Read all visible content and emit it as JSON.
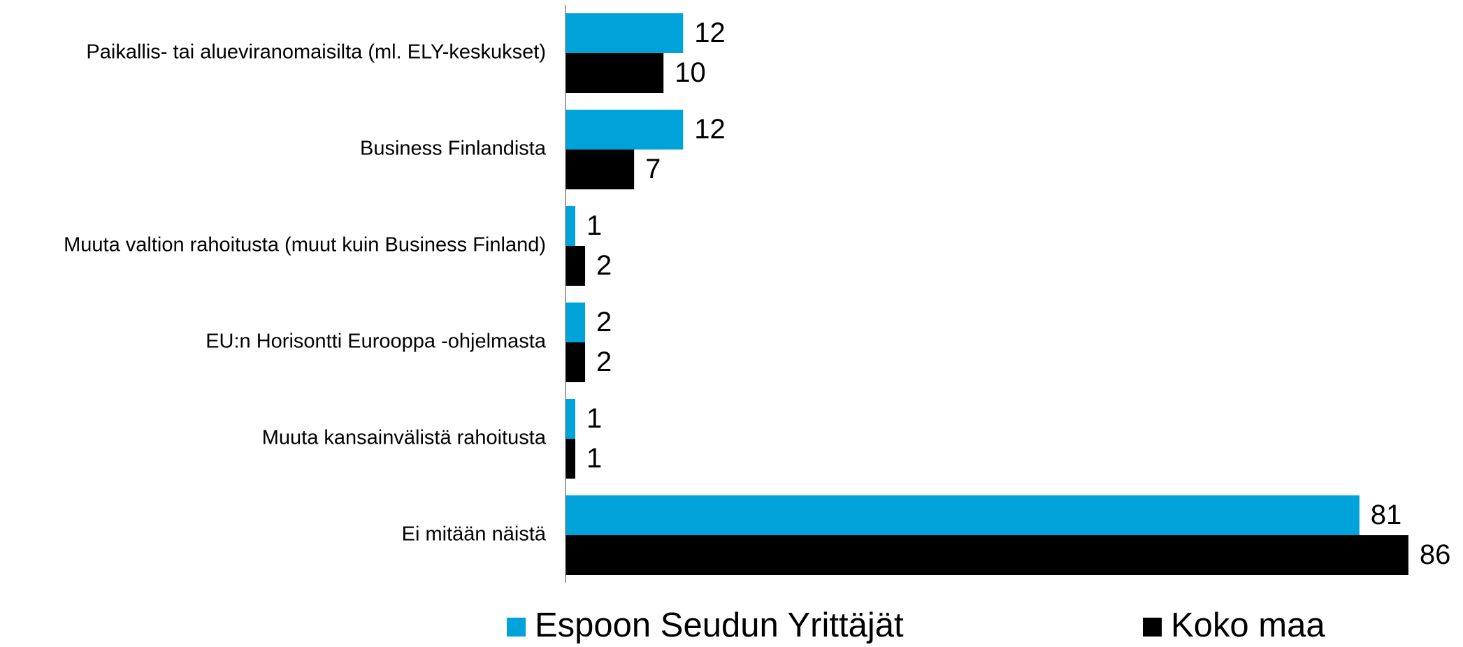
{
  "chart_data": {
    "type": "barh",
    "categories": [
      "Paikallis- tai alueviranomaisilta (ml. ELY-keskukset)",
      "Business Finlandista",
      "Muuta valtion rahoitusta (muut kuin Business Finland)",
      "EU:n Horisontti Eurooppa -ohjelmasta",
      "Muuta kansainvälistä rahoitusta",
      "Ei mitään näistä"
    ],
    "series": [
      {
        "name": "Espoon Seudun Yrittäjät",
        "color": "#00a3d9",
        "values": [
          12,
          12,
          1,
          2,
          1,
          81
        ]
      },
      {
        "name": "Koko maa",
        "color": "#000000",
        "values": [
          10,
          7,
          2,
          2,
          1,
          86
        ]
      }
    ],
    "xlim": [
      0,
      90
    ]
  }
}
